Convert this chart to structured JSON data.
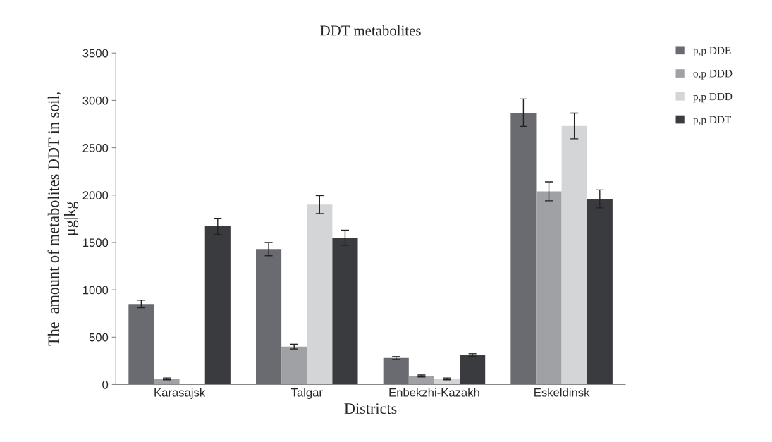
{
  "chart_data": {
    "type": "bar",
    "title": "DDT metabolites",
    "xlabel": "Districts",
    "ylabel": "The  amount of metabolites DDT in soil,\nμg|kg",
    "categories": [
      "Karasajsk",
      "Talgar",
      "Enbekzhi-Kazakh",
      "Eskeldinsk"
    ],
    "series": [
      {
        "name": "p,p DDE",
        "color": "#6a6b70",
        "values": [
          850,
          1430,
          280,
          2870
        ],
        "errors": [
          40,
          70,
          15,
          145
        ]
      },
      {
        "name": "o,p DDD",
        "color": "#a0a1a5",
        "values": [
          60,
          400,
          90,
          2040
        ],
        "errors": [
          10,
          25,
          10,
          100
        ]
      },
      {
        "name": "p,p DDD",
        "color": "#d4d5d7",
        "values": [
          null,
          1900,
          60,
          2730
        ],
        "errors": [
          null,
          95,
          10,
          135
        ]
      },
      {
        "name": "p,p DDT",
        "color": "#3a3b3e",
        "values": [
          1670,
          1550,
          310,
          1960
        ],
        "errors": [
          85,
          80,
          15,
          95
        ]
      }
    ],
    "ylim": [
      0,
      3500
    ],
    "yticks": [
      0,
      500,
      1000,
      1500,
      2000,
      2500,
      3000,
      3500
    ],
    "grid": false,
    "legend": "top right"
  }
}
